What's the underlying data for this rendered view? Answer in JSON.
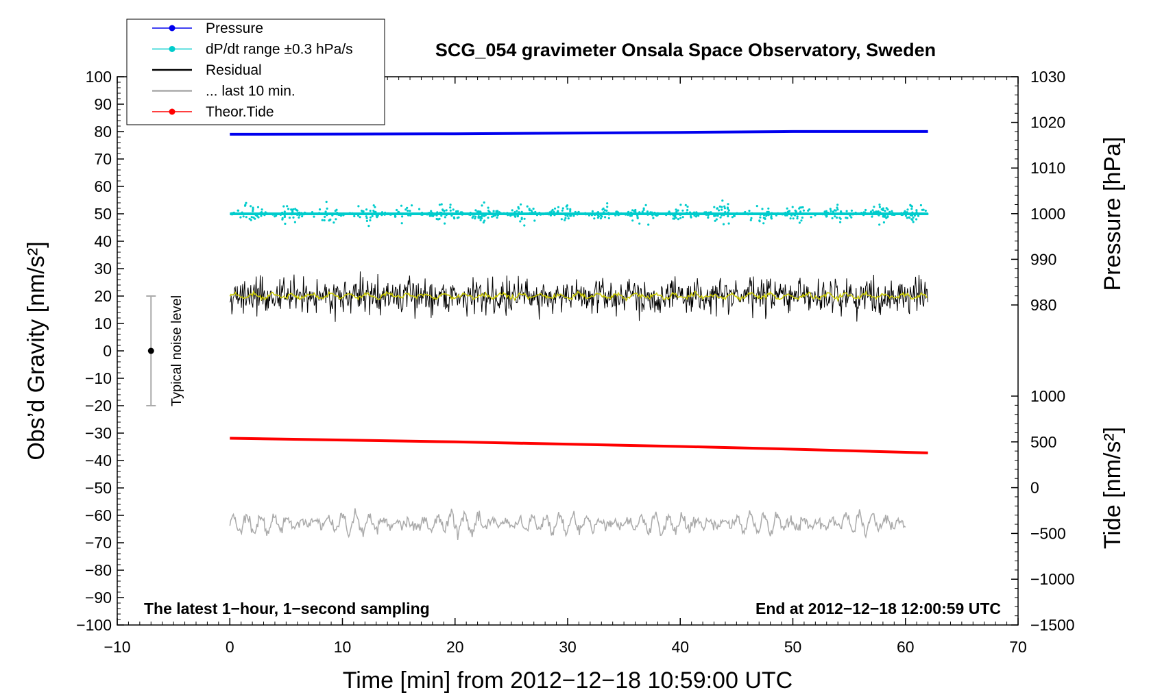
{
  "chart_data": {
    "type": "line",
    "title": "SCG_054 gravimeter Onsala Space Observatory, Sweden",
    "xlabel": "Time [min] from 2012−12−18 10:59:00 UTC",
    "ylabel_left": "Obs’d Gravity [nm/s²]",
    "ylabel_pressure": "Pressure [hPa]",
    "ylabel_tide": "Tide [nm/s²]",
    "xlim": [
      -10,
      70
    ],
    "ylim": [
      -100,
      100
    ],
    "pressure_lim": [
      980,
      1030
    ],
    "tide_lim": [
      -1500,
      1000
    ],
    "x_ticks": [
      "−10",
      "0",
      "10",
      "20",
      "30",
      "40",
      "50",
      "60",
      "70"
    ],
    "y_ticks": [
      "100",
      "90",
      "80",
      "70",
      "60",
      "50",
      "40",
      "30",
      "20",
      "10",
      "0",
      "−10",
      "−20",
      "−30",
      "−40",
      "−50",
      "−60",
      "−70",
      "−80",
      "−90",
      "−100"
    ],
    "pressure_ticks": [
      "1030",
      "1020",
      "1010",
      "1000",
      "990",
      "980"
    ],
    "tide_ticks": [
      "1000",
      "500",
      "0",
      "−500",
      "−1000",
      "−1500"
    ],
    "legend": {
      "position": "top-left",
      "entries": [
        {
          "label": "Pressure",
          "color": "#0000ee",
          "marker": true
        },
        {
          "label": "dP/dt range ±0.3 hPa/s",
          "color": "#00cccc",
          "marker": true
        },
        {
          "label": "Residual",
          "color": "#000000",
          "marker": false
        },
        {
          "label": "... last 10 min.",
          "color": "#aaaaaa",
          "marker": false
        },
        {
          "label": "Theor.Tide",
          "color": "#ff0000",
          "marker": true
        }
      ]
    },
    "series": [
      {
        "name": "Pressure",
        "axis": "pressure",
        "color": "#0000ee",
        "x": [
          0,
          20,
          40,
          50,
          62
        ],
        "values": [
          1017.4,
          1017.5,
          1017.8,
          1018.0,
          1018.0
        ]
      },
      {
        "name": "dP/dt range ±0.3 hPa/s",
        "axis": "left",
        "color": "#00cccc",
        "x_range": [
          0,
          62
        ],
        "center": 50,
        "spread_approx": 8
      },
      {
        "name": "Residual",
        "axis": "left",
        "color": "#000000",
        "x_range": [
          0,
          62
        ],
        "center": 20,
        "spread_approx": 12
      },
      {
        "name": "Residual smoothed",
        "axis": "left",
        "color": "#cccc00",
        "x_range": [
          0,
          62
        ],
        "center": 20
      },
      {
        "name": "... last 10 min.",
        "axis": "left",
        "color": "#aaaaaa",
        "x_range": [
          0,
          60
        ],
        "center": -63,
        "spread_approx": 9
      },
      {
        "name": "Theor.Tide",
        "axis": "tide",
        "color": "#ff0000",
        "x": [
          0,
          10,
          20,
          30,
          40,
          50,
          62
        ],
        "values": [
          540,
          520,
          500,
          475,
          450,
          420,
          380
        ]
      }
    ],
    "noise_bar": {
      "label": "Typical noise level",
      "x": -7,
      "center": 0,
      "low": -20,
      "high": 20
    },
    "annotations": {
      "left": "The latest 1−hour, 1−second sampling",
      "right": "End at 2012−12−18 12:00:59 UTC"
    }
  }
}
